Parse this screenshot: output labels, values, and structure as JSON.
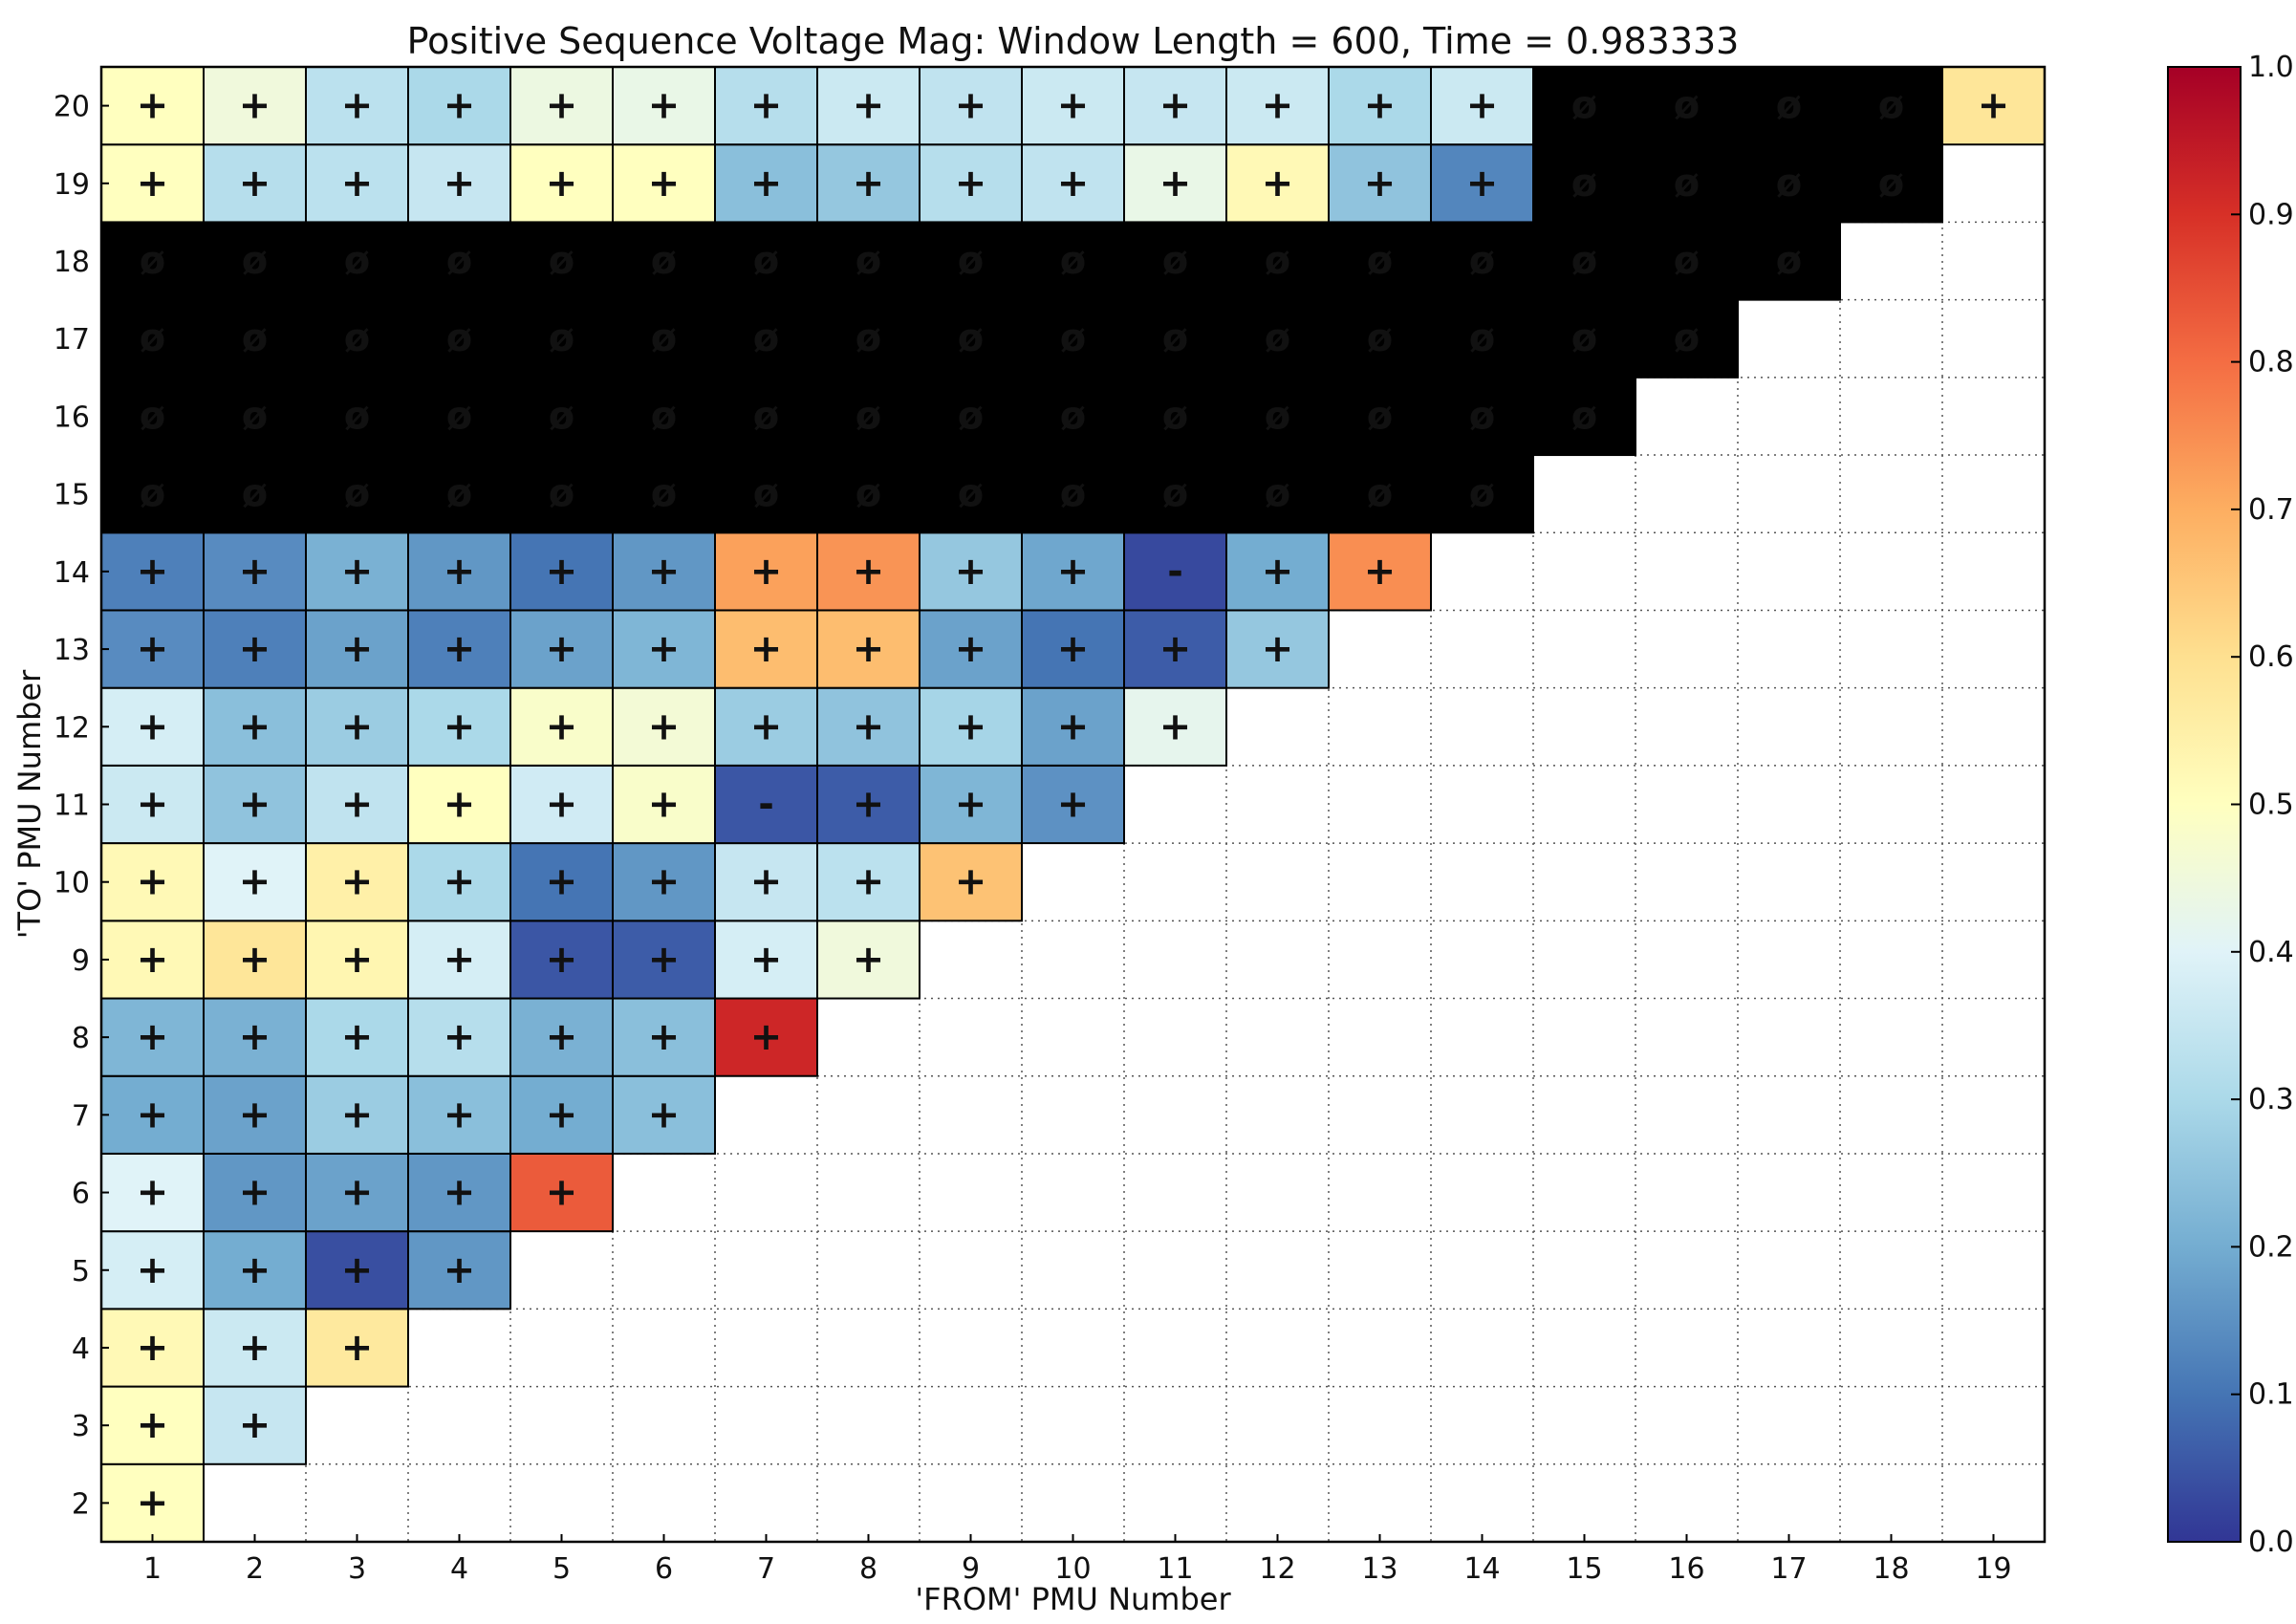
{
  "chart_data": {
    "type": "heatmap",
    "title": "Positive Sequence Voltage Mag: Window Length = 600, Time = 0.983333",
    "xlabel": "'FROM' PMU Number",
    "ylabel": "'TO' PMU Number",
    "x_ticks": [
      "1",
      "2",
      "3",
      "4",
      "5",
      "6",
      "7",
      "8",
      "9",
      "10",
      "11",
      "12",
      "13",
      "14",
      "15",
      "16",
      "17",
      "18",
      "19"
    ],
    "y_ticks": [
      "2",
      "3",
      "4",
      "5",
      "6",
      "7",
      "8",
      "9",
      "10",
      "11",
      "12",
      "13",
      "14",
      "15",
      "16",
      "17",
      "18",
      "19",
      "20"
    ],
    "colorbar": {
      "range": [
        0,
        1
      ],
      "ticks": [
        "0.0",
        "0.1",
        "0.2",
        "0.3",
        "0.4",
        "0.5",
        "0.6",
        "0.7",
        "0.8",
        "0.9",
        "1.0"
      ],
      "colormap": [
        "#313695",
        "#4575b4",
        "#74add1",
        "#abd9e9",
        "#e0f3f8",
        "#ffffbf",
        "#fee090",
        "#fdae61",
        "#f46d43",
        "#d73027",
        "#a50026"
      ]
    },
    "empty_color": "#000000",
    "symbols": {
      "positive": "+",
      "negative": "-",
      "empty": "ø"
    },
    "grid": "dotted",
    "rows": [
      {
        "to": 2,
        "values": [
          0.5
        ],
        "signs": [
          "+"
        ]
      },
      {
        "to": 3,
        "values": [
          0.5,
          0.35
        ],
        "signs": [
          "+",
          "+"
        ]
      },
      {
        "to": 4,
        "values": [
          0.52,
          0.36,
          0.57
        ],
        "signs": [
          "+",
          "+",
          "+"
        ]
      },
      {
        "to": 5,
        "values": [
          0.38,
          0.2,
          0.04,
          0.16
        ],
        "signs": [
          "+",
          "+",
          "+",
          "+"
        ]
      },
      {
        "to": 6,
        "values": [
          0.4,
          0.16,
          0.18,
          0.16,
          0.83
        ],
        "signs": [
          "+",
          "+",
          "+",
          "+",
          "+"
        ]
      },
      {
        "to": 7,
        "values": [
          0.2,
          0.18,
          0.27,
          0.24,
          0.2,
          0.24
        ],
        "signs": [
          "+",
          "+",
          "+",
          "+",
          "+",
          "+"
        ]
      },
      {
        "to": 8,
        "values": [
          0.22,
          0.21,
          0.3,
          0.32,
          0.21,
          0.24,
          0.92
        ],
        "signs": [
          "+",
          "+",
          "+",
          "+",
          "+",
          "+",
          "+"
        ]
      },
      {
        "to": 9,
        "values": [
          0.52,
          0.58,
          0.53,
          0.38,
          0.05,
          0.06,
          0.38,
          0.45
        ],
        "signs": [
          "+",
          "+",
          "+",
          "+",
          "+",
          "+",
          "+",
          "+"
        ]
      },
      {
        "to": 10,
        "values": [
          0.52,
          0.4,
          0.55,
          0.3,
          0.1,
          0.16,
          0.35,
          0.33,
          0.66
        ],
        "signs": [
          "+",
          "+",
          "+",
          "+",
          "+",
          "+",
          "+",
          "+",
          "+"
        ]
      },
      {
        "to": 11,
        "values": [
          0.36,
          0.25,
          0.34,
          0.5,
          0.37,
          0.48,
          0.05,
          0.06,
          0.22,
          0.15
        ],
        "signs": [
          "+",
          "+",
          "+",
          "+",
          "+",
          "+",
          "-",
          "+",
          "+",
          "+"
        ]
      },
      {
        "to": 12,
        "values": [
          0.38,
          0.24,
          0.27,
          0.3,
          0.48,
          0.46,
          0.27,
          0.25,
          0.29,
          0.18,
          0.42
        ],
        "signs": [
          "+",
          "+",
          "+",
          "+",
          "+",
          "+",
          "+",
          "+",
          "+",
          "+",
          "+"
        ]
      },
      {
        "to": 13,
        "values": [
          0.14,
          0.12,
          0.18,
          0.12,
          0.18,
          0.22,
          0.67,
          0.67,
          0.18,
          0.1,
          0.06,
          0.26
        ],
        "signs": [
          "+",
          "+",
          "+",
          "+",
          "+",
          "+",
          "+",
          "+",
          "+",
          "+",
          "+",
          "+"
        ]
      },
      {
        "to": 14,
        "values": [
          0.12,
          0.14,
          0.21,
          0.16,
          0.1,
          0.16,
          0.72,
          0.74,
          0.26,
          0.19,
          0.03,
          0.2,
          0.75
        ],
        "signs": [
          "+",
          "+",
          "+",
          "+",
          "+",
          "+",
          "+",
          "+",
          "+",
          "+",
          "-",
          "+",
          "+"
        ]
      },
      {
        "to": 15,
        "values": [
          null,
          null,
          null,
          null,
          null,
          null,
          null,
          null,
          null,
          null,
          null,
          null,
          null,
          null
        ],
        "signs": [
          "ø",
          "ø",
          "ø",
          "ø",
          "ø",
          "ø",
          "ø",
          "ø",
          "ø",
          "ø",
          "ø",
          "ø",
          "ø",
          "ø"
        ]
      },
      {
        "to": 16,
        "values": [
          null,
          null,
          null,
          null,
          null,
          null,
          null,
          null,
          null,
          null,
          null,
          null,
          null,
          null,
          null
        ],
        "signs": [
          "ø",
          "ø",
          "ø",
          "ø",
          "ø",
          "ø",
          "ø",
          "ø",
          "ø",
          "ø",
          "ø",
          "ø",
          "ø",
          "ø",
          "ø"
        ]
      },
      {
        "to": 17,
        "values": [
          null,
          null,
          null,
          null,
          null,
          null,
          null,
          null,
          null,
          null,
          null,
          null,
          null,
          null,
          null,
          null
        ],
        "signs": [
          "ø",
          "ø",
          "ø",
          "ø",
          "ø",
          "ø",
          "ø",
          "ø",
          "ø",
          "ø",
          "ø",
          "ø",
          "ø",
          "ø",
          "ø",
          "ø"
        ]
      },
      {
        "to": 18,
        "values": [
          null,
          null,
          null,
          null,
          null,
          null,
          null,
          null,
          null,
          null,
          null,
          null,
          null,
          null,
          null,
          null,
          null
        ],
        "signs": [
          "ø",
          "ø",
          "ø",
          "ø",
          "ø",
          "ø",
          "ø",
          "ø",
          "ø",
          "ø",
          "ø",
          "ø",
          "ø",
          "ø",
          "ø",
          "ø",
          "ø"
        ]
      },
      {
        "to": 19,
        "values": [
          0.5,
          0.32,
          0.33,
          0.35,
          0.5,
          0.5,
          0.24,
          0.26,
          0.32,
          0.34,
          0.43,
          0.52,
          0.25,
          0.13,
          null,
          null,
          null,
          null
        ],
        "signs": [
          "+",
          "+",
          "+",
          "+",
          "+",
          "+",
          "+",
          "+",
          "+",
          "+",
          "+",
          "+",
          "+",
          "+",
          "ø",
          "ø",
          "ø",
          "ø"
        ]
      },
      {
        "to": 20,
        "values": [
          0.5,
          0.45,
          0.33,
          0.3,
          0.44,
          0.43,
          0.32,
          0.36,
          0.34,
          0.36,
          0.35,
          0.36,
          0.3,
          0.36,
          null,
          null,
          null,
          null,
          0.58
        ],
        "signs": [
          "+",
          "+",
          "+",
          "+",
          "+",
          "+",
          "+",
          "+",
          "+",
          "+",
          "+",
          "+",
          "+",
          "+",
          "ø",
          "ø",
          "ø",
          "ø",
          "+"
        ]
      }
    ]
  }
}
